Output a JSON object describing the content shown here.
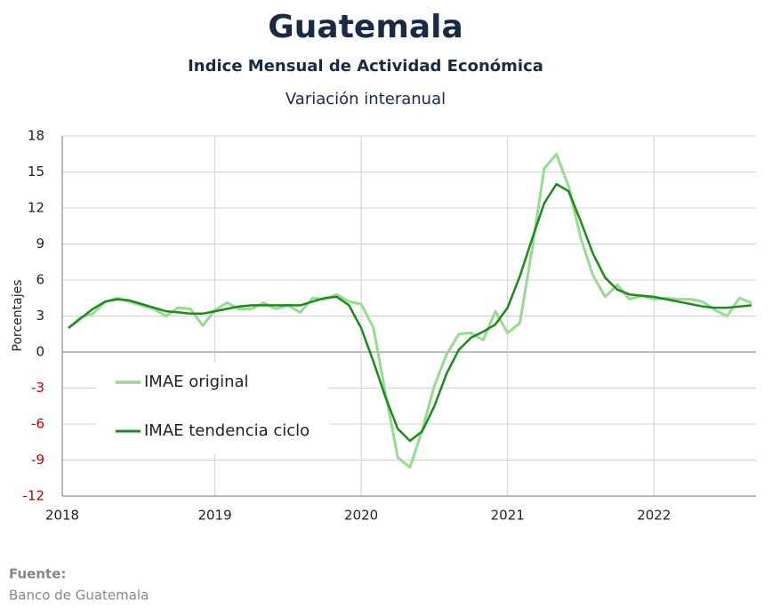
{
  "chart_data": {
    "type": "line",
    "title": "Guatemala",
    "subtitle": "Indice Mensual de  Actividad Económica",
    "subtitle2": "Variación interanual",
    "y_label": "Porcentajes",
    "source_label": "Fuente:",
    "source": "Banco de Guatemala",
    "categories": [
      "2018",
      null,
      null,
      null,
      null,
      null,
      null,
      null,
      null,
      null,
      null,
      null,
      "2019",
      null,
      null,
      null,
      null,
      null,
      null,
      null,
      null,
      null,
      null,
      null,
      "2020",
      null,
      null,
      null,
      null,
      null,
      null,
      null,
      null,
      null,
      null,
      null,
      "2021",
      null,
      null,
      null,
      null,
      null,
      null,
      null,
      null,
      null,
      null,
      null,
      "2022",
      null,
      null,
      null,
      null,
      null,
      null,
      null,
      null
    ],
    "series": [
      {
        "name": "IMAE original",
        "color": "#94dc8f",
        "width": 3,
        "values": [
          2.0,
          2.9,
          3.2,
          4.2,
          4.5,
          4.2,
          3.9,
          3.6,
          3.0,
          3.7,
          3.6,
          2.2,
          3.5,
          4.1,
          3.6,
          3.6,
          4.1,
          3.6,
          3.9,
          3.3,
          4.5,
          4.4,
          4.8,
          4.2,
          4.0,
          2.0,
          -3.5,
          -8.8,
          -9.6,
          -6.5,
          -2.8,
          -0.2,
          1.5,
          1.6,
          1.0,
          3.4,
          1.6,
          2.4,
          8.5,
          15.3,
          16.5,
          13.8,
          9.5,
          6.4,
          4.6,
          5.6,
          4.4,
          4.7,
          4.4,
          4.5,
          4.4,
          4.4,
          4.2,
          3.5,
          3.0,
          4.5,
          4.1
        ]
      },
      {
        "name": "IMAE tendencia ciclo",
        "color": "#1a8c1a",
        "width": 2.5,
        "values": [
          2.0,
          2.8,
          3.6,
          4.2,
          4.4,
          4.3,
          4.0,
          3.7,
          3.4,
          3.3,
          3.2,
          3.2,
          3.4,
          3.6,
          3.8,
          3.9,
          3.9,
          3.9,
          3.9,
          3.9,
          4.2,
          4.5,
          4.6,
          3.9,
          2.0,
          -0.8,
          -3.8,
          -6.4,
          -7.4,
          -6.6,
          -4.5,
          -1.8,
          0.2,
          1.2,
          1.7,
          2.3,
          3.7,
          6.3,
          9.4,
          12.4,
          14.0,
          13.4,
          10.9,
          8.2,
          6.2,
          5.2,
          4.8,
          4.7,
          4.6,
          4.4,
          4.2,
          4.0,
          3.8,
          3.7,
          3.7,
          3.8,
          3.9
        ]
      }
    ],
    "ylim": [
      -12,
      18
    ],
    "yticks": [
      -12,
      -9,
      -6,
      -3,
      0,
      3,
      6,
      9,
      12,
      15,
      18
    ],
    "negative_tick_color": "#c00000",
    "grid": true
  }
}
